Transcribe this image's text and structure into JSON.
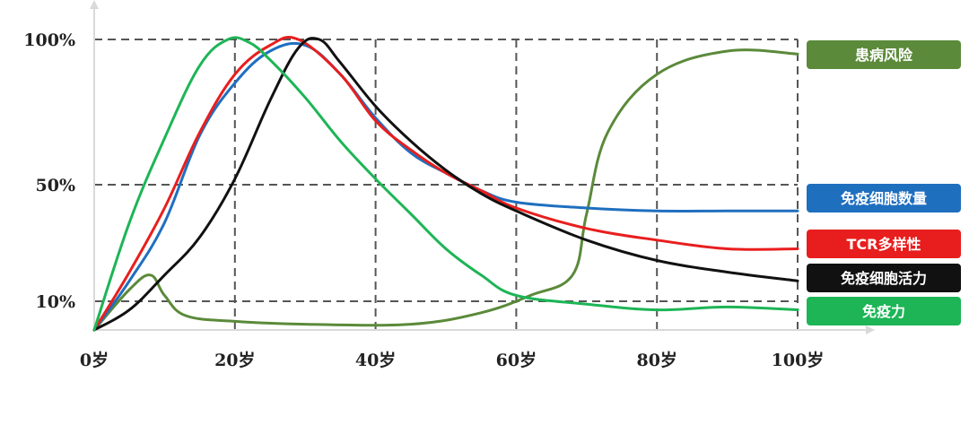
{
  "chart_data": {
    "type": "line",
    "title": "",
    "xlabel": "",
    "ylabel": "",
    "xlim": [
      0,
      100
    ],
    "ylim": [
      0,
      100
    ],
    "grid": true,
    "legend_placement": "right",
    "x_ticks": [
      {
        "value": 0,
        "label": "0岁"
      },
      {
        "value": 20,
        "label": "20岁"
      },
      {
        "value": 40,
        "label": "40岁"
      },
      {
        "value": 60,
        "label": "60岁"
      },
      {
        "value": 80,
        "label": "80岁"
      },
      {
        "value": 100,
        "label": "100岁"
      }
    ],
    "y_ticks": [
      {
        "value": 10,
        "label": "10%"
      },
      {
        "value": 50,
        "label": "50%"
      },
      {
        "value": 100,
        "label": "100%"
      }
    ],
    "series": [
      {
        "name": "患病风险",
        "color": "#5b8a3a",
        "points": [
          [
            0,
            0
          ],
          [
            5,
            14
          ],
          [
            8,
            19
          ],
          [
            10,
            12
          ],
          [
            13,
            5
          ],
          [
            20,
            3
          ],
          [
            30,
            2
          ],
          [
            45,
            2
          ],
          [
            55,
            6
          ],
          [
            62,
            12
          ],
          [
            68,
            19
          ],
          [
            70,
            40
          ],
          [
            73,
            68
          ],
          [
            80,
            88
          ],
          [
            90,
            96
          ],
          [
            100,
            95
          ]
        ]
      },
      {
        "name": "免疫细胞数量",
        "color": "#1f6fbf",
        "points": [
          [
            0,
            0
          ],
          [
            5,
            17
          ],
          [
            10,
            37
          ],
          [
            15,
            67
          ],
          [
            20,
            85
          ],
          [
            25,
            96
          ],
          [
            30,
            98
          ],
          [
            35,
            88
          ],
          [
            40,
            73
          ],
          [
            45,
            61
          ],
          [
            50,
            54
          ],
          [
            55,
            48
          ],
          [
            60,
            44
          ],
          [
            70,
            42
          ],
          [
            80,
            41
          ],
          [
            90,
            41
          ],
          [
            100,
            41
          ]
        ]
      },
      {
        "name": "TCR多样性",
        "color": "#e81e1e",
        "points": [
          [
            0,
            0
          ],
          [
            5,
            20
          ],
          [
            10,
            42
          ],
          [
            15,
            68
          ],
          [
            20,
            88
          ],
          [
            25,
            98
          ],
          [
            29,
            100
          ],
          [
            35,
            88
          ],
          [
            40,
            72
          ],
          [
            45,
            62
          ],
          [
            50,
            54
          ],
          [
            55,
            48
          ],
          [
            60,
            42
          ],
          [
            70,
            35
          ],
          [
            80,
            31
          ],
          [
            90,
            28
          ],
          [
            100,
            28
          ]
        ]
      },
      {
        "name": "免疫细胞活力",
        "color": "#111111",
        "points": [
          [
            0,
            0
          ],
          [
            5,
            7
          ],
          [
            10,
            19
          ],
          [
            15,
            32
          ],
          [
            20,
            52
          ],
          [
            25,
            79
          ],
          [
            29,
            97
          ],
          [
            32,
            100
          ],
          [
            35,
            92
          ],
          [
            40,
            77
          ],
          [
            45,
            65
          ],
          [
            50,
            55
          ],
          [
            55,
            47
          ],
          [
            60,
            41
          ],
          [
            70,
            31
          ],
          [
            80,
            24
          ],
          [
            90,
            20
          ],
          [
            100,
            17
          ]
        ]
      },
      {
        "name": "免疫力",
        "color": "#1db556",
        "points": [
          [
            0,
            0
          ],
          [
            5,
            37
          ],
          [
            10,
            66
          ],
          [
            15,
            91
          ],
          [
            19,
            100
          ],
          [
            22,
            99
          ],
          [
            25,
            93
          ],
          [
            30,
            80
          ],
          [
            35,
            65
          ],
          [
            40,
            52
          ],
          [
            45,
            40
          ],
          [
            50,
            28
          ],
          [
            55,
            19
          ],
          [
            60,
            12
          ],
          [
            70,
            9
          ],
          [
            80,
            7
          ],
          [
            90,
            8
          ],
          [
            100,
            7
          ]
        ]
      }
    ],
    "legend": [
      {
        "label": "患病风险",
        "color": "#5b8a3a"
      },
      {
        "label": "免疫细胞数量",
        "color": "#1f6fbf"
      },
      {
        "label": "TCR多样性",
        "color": "#e81e1e"
      },
      {
        "label": "免疫细胞活力",
        "color": "#111111"
      },
      {
        "label": "免疫力",
        "color": "#1db556"
      }
    ]
  }
}
